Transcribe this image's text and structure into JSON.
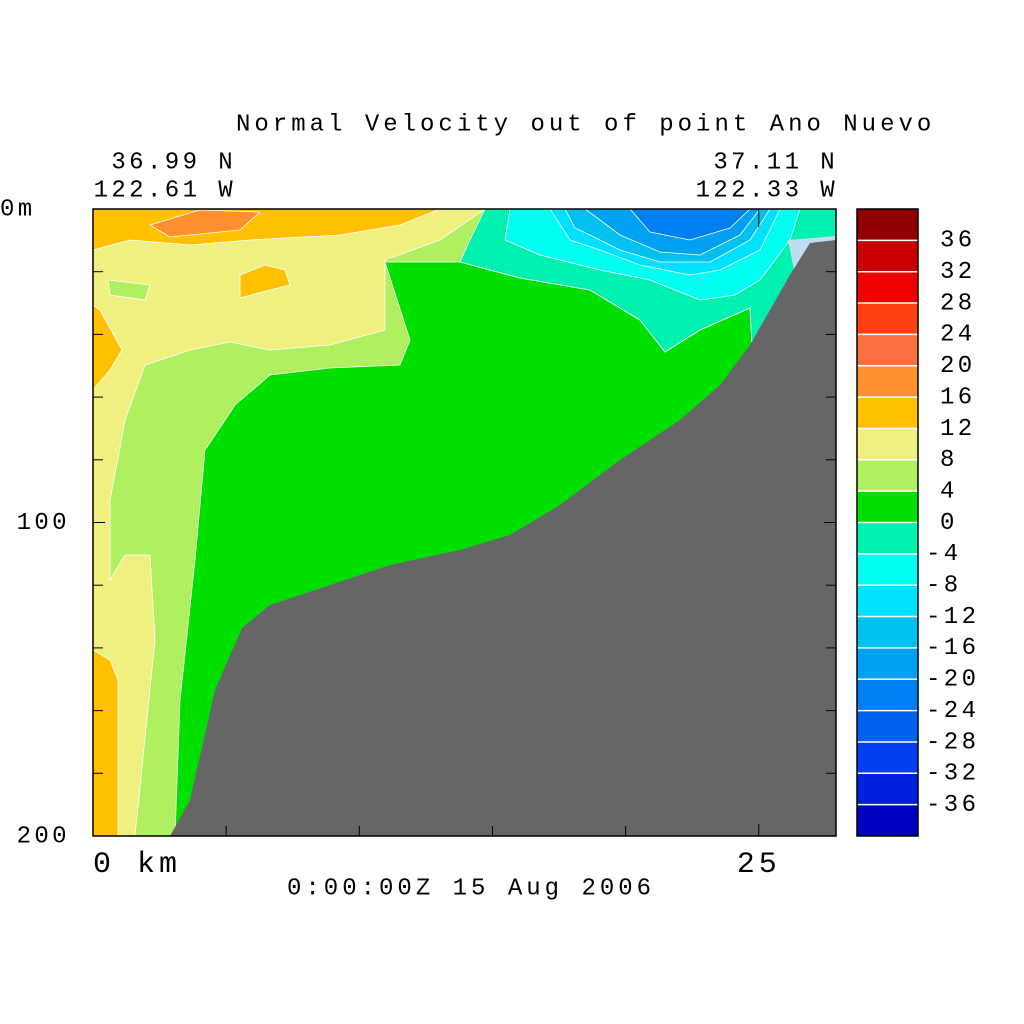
{
  "chart_data": {
    "type": "contour",
    "title": "Normal Velocity out of point Ano Nuevo",
    "start_lat": "36.99 N",
    "start_lon": "122.61 W",
    "end_lat": "37.11 N",
    "end_lon": "122.33 W",
    "time": "0:00:00Z  15 Aug 2006",
    "xlim": [
      0,
      27.9
    ],
    "xticks": [
      {
        "value": 0,
        "label": "0 km"
      },
      25
    ],
    "xminorticks": [
      5,
      10,
      15,
      20
    ],
    "ylim": [
      0,
      200
    ],
    "yticks": [
      {
        "value": 0,
        "label": "0m"
      },
      100,
      200
    ],
    "yminorticks": [
      20,
      40,
      60,
      80,
      120,
      140,
      160,
      180
    ],
    "colorbar": {
      "levels": [
        -40,
        -36,
        -32,
        -28,
        -24,
        -20,
        -16,
        -12,
        -8,
        -4,
        0,
        4,
        8,
        12,
        16,
        20,
        24,
        28,
        32,
        36,
        40
      ],
      "colors": [
        "#0000c0",
        "#0020e0",
        "#0040f0",
        "#0060f0",
        "#0080f0",
        "#00a0f0",
        "#00c0f0",
        "#00e0ff",
        "#00fff0",
        "#00f0b0",
        "#00e000",
        "#b0f060",
        "#f0f080",
        "#ffc000",
        "#ff9030",
        "#ff7040",
        "#ff4010",
        "#f00000",
        "#c80000",
        "#900000"
      ]
    }
  }
}
